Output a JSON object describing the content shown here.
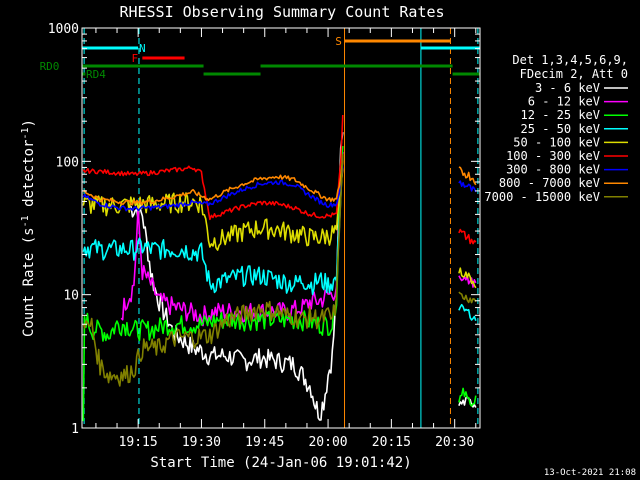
{
  "chart_data": {
    "type": "line",
    "title": "RHESSI Observing Summary Count Rates",
    "xlabel": "Start Time (24-Jan-06 19:01:42)",
    "ylabel_main": "Count Rate (s",
    "ylabel_sup1": "-1",
    "ylabel_mid": " detector",
    "ylabel_sup2": "-1",
    "ylabel_end": ")",
    "ylim": [
      1,
      1000
    ],
    "yscale": "log",
    "xlim_minutes": [
      1.7,
      96.0
    ],
    "x_ticks": [
      {
        "t": 15,
        "label": "19:15"
      },
      {
        "t": 30,
        "label": "19:30"
      },
      {
        "t": 45,
        "label": "19:45"
      },
      {
        "t": 60,
        "label": "20:00"
      },
      {
        "t": 75,
        "label": "20:15"
      },
      {
        "t": 90,
        "label": "20:30"
      }
    ],
    "y_ticks": [
      {
        "v": 1,
        "label": "1"
      },
      {
        "v": 10,
        "label": "10"
      },
      {
        "v": 100,
        "label": "100"
      },
      {
        "v": 1000,
        "label": "1000"
      }
    ],
    "legend_header": [
      "Det 1,3,4,5,6,9,",
      "FDecim 2, Att 0"
    ],
    "series": [
      {
        "name": "3 - 6 keV",
        "color": "#ffffff",
        "points": [
          [
            13,
            45
          ],
          [
            15,
            43
          ],
          [
            16,
            40
          ],
          [
            17,
            25
          ],
          [
            18,
            15
          ],
          [
            19,
            11
          ],
          [
            20,
            9
          ],
          [
            21,
            7.5
          ],
          [
            22,
            6.5
          ],
          [
            23,
            5.5
          ],
          [
            24,
            5
          ],
          [
            26,
            4.5
          ],
          [
            28,
            4
          ],
          [
            30,
            3.8
          ],
          [
            32,
            3.5
          ],
          [
            36,
            3.5
          ],
          [
            40,
            3.2
          ],
          [
            44,
            3.4
          ],
          [
            48,
            3.2
          ],
          [
            52,
            3
          ],
          [
            54,
            2.5
          ],
          [
            56,
            2
          ],
          [
            57,
            1.5
          ],
          [
            58,
            1.3
          ],
          [
            59,
            1.6
          ],
          [
            60,
            2.5
          ],
          [
            61,
            3.5
          ],
          [
            62,
            10
          ],
          [
            63,
            120
          ],
          [
            63.5,
            180
          ]
        ]
      },
      {
        "name": "6 - 12 keV",
        "color": "#ff00ff",
        "points": [
          [
            11,
            7
          ],
          [
            12,
            9
          ],
          [
            13,
            10
          ],
          [
            14,
            12
          ],
          [
            15,
            40
          ],
          [
            16,
            15
          ],
          [
            18,
            12
          ],
          [
            20,
            9
          ],
          [
            24,
            8
          ],
          [
            30,
            7
          ],
          [
            34,
            7.5
          ],
          [
            38,
            7.5
          ],
          [
            42,
            7.5
          ],
          [
            46,
            7.5
          ],
          [
            50,
            7.5
          ],
          [
            54,
            8
          ],
          [
            56,
            9
          ],
          [
            58,
            9
          ],
          [
            60,
            10
          ],
          [
            61,
            10
          ],
          [
            62,
            12
          ],
          [
            63,
            60
          ],
          [
            63.5,
            120
          ]
        ]
      },
      {
        "name": "12 - 25 keV",
        "color": "#00ff00",
        "points": [
          [
            2,
            1
          ],
          [
            2.3,
            7
          ],
          [
            4,
            5.5
          ],
          [
            6,
            5.5
          ],
          [
            8,
            5
          ],
          [
            10,
            6
          ],
          [
            12,
            6
          ],
          [
            14,
            5.5
          ],
          [
            16,
            5.5
          ],
          [
            18,
            5.5
          ],
          [
            22,
            6
          ],
          [
            26,
            6
          ],
          [
            30,
            6
          ],
          [
            34,
            6.5
          ],
          [
            38,
            6.5
          ],
          [
            42,
            6.5
          ],
          [
            46,
            6.5
          ],
          [
            50,
            6.5
          ],
          [
            54,
            6.5
          ],
          [
            58,
            6
          ],
          [
            60,
            6
          ],
          [
            61,
            6
          ],
          [
            62,
            10
          ],
          [
            63,
            80
          ],
          [
            63.5,
            150
          ]
        ]
      },
      {
        "name": "25 - 50 keV",
        "color": "#00ffff",
        "points": [
          [
            2,
            23
          ],
          [
            6,
            22
          ],
          [
            10,
            22
          ],
          [
            14,
            22
          ],
          [
            16,
            23
          ],
          [
            18,
            22
          ],
          [
            20,
            22
          ],
          [
            22,
            22
          ],
          [
            24,
            22
          ],
          [
            26,
            22
          ],
          [
            28,
            21
          ],
          [
            30,
            21
          ],
          [
            32,
            12
          ],
          [
            36,
            13
          ],
          [
            40,
            14
          ],
          [
            44,
            14
          ],
          [
            48,
            13
          ],
          [
            52,
            12
          ],
          [
            54,
            13
          ],
          [
            56,
            12
          ],
          [
            58,
            13
          ],
          [
            60,
            12
          ],
          [
            62,
            13
          ],
          [
            63,
            60
          ],
          [
            63.5,
            110
          ]
        ]
      },
      {
        "name": "50 - 100 keV",
        "color": "#dddd00",
        "points": [
          [
            2,
            48
          ],
          [
            6,
            47
          ],
          [
            10,
            47
          ],
          [
            14,
            48
          ],
          [
            18,
            48
          ],
          [
            22,
            49
          ],
          [
            26,
            50
          ],
          [
            28,
            50
          ],
          [
            30,
            49
          ],
          [
            32,
            25
          ],
          [
            36,
            27
          ],
          [
            40,
            30
          ],
          [
            44,
            32
          ],
          [
            48,
            31
          ],
          [
            52,
            29
          ],
          [
            54,
            28
          ],
          [
            56,
            27
          ],
          [
            58,
            27
          ],
          [
            60,
            28
          ],
          [
            62,
            30
          ],
          [
            63,
            55
          ],
          [
            63.5,
            80
          ]
        ]
      },
      {
        "name": "100 - 300 keV",
        "color": "#ff0000",
        "points": [
          [
            2,
            85
          ],
          [
            6,
            84
          ],
          [
            10,
            82
          ],
          [
            14,
            80
          ],
          [
            18,
            82
          ],
          [
            22,
            85
          ],
          [
            26,
            88
          ],
          [
            28,
            90
          ],
          [
            30,
            82
          ],
          [
            32,
            38
          ],
          [
            36,
            42
          ],
          [
            40,
            46
          ],
          [
            44,
            49
          ],
          [
            48,
            48
          ],
          [
            52,
            45
          ],
          [
            54,
            42
          ],
          [
            56,
            40
          ],
          [
            58,
            39
          ],
          [
            60,
            39
          ],
          [
            62,
            40
          ],
          [
            63,
            100
          ],
          [
            63.5,
            220
          ]
        ]
      },
      {
        "name": "300 - 800 keV",
        "color": "#0000ff",
        "points": [
          [
            2,
            55
          ],
          [
            6,
            48
          ],
          [
            10,
            45
          ],
          [
            14,
            44
          ],
          [
            18,
            45
          ],
          [
            22,
            46
          ],
          [
            26,
            48
          ],
          [
            28,
            49
          ],
          [
            30,
            48
          ],
          [
            32,
            48
          ],
          [
            36,
            55
          ],
          [
            40,
            62
          ],
          [
            44,
            68
          ],
          [
            48,
            70
          ],
          [
            52,
            67
          ],
          [
            54,
            60
          ],
          [
            56,
            55
          ],
          [
            58,
            50
          ],
          [
            60,
            47
          ],
          [
            62,
            48
          ],
          [
            63,
            65
          ],
          [
            63.5,
            90
          ]
        ]
      },
      {
        "name": "800 - 7000 keV",
        "color": "#ff8800",
        "points": [
          [
            2,
            60
          ],
          [
            6,
            52
          ],
          [
            10,
            50
          ],
          [
            14,
            49
          ],
          [
            18,
            50
          ],
          [
            22,
            53
          ],
          [
            26,
            57
          ],
          [
            28,
            59
          ],
          [
            30,
            55
          ],
          [
            32,
            52
          ],
          [
            36,
            60
          ],
          [
            40,
            68
          ],
          [
            44,
            74
          ],
          [
            48,
            77
          ],
          [
            52,
            73
          ],
          [
            54,
            67
          ],
          [
            56,
            61
          ],
          [
            58,
            56
          ],
          [
            60,
            52
          ],
          [
            62,
            52
          ],
          [
            63,
            75
          ],
          [
            63.5,
            100
          ]
        ]
      },
      {
        "name": "7000 - 15000 keV",
        "color": "#808000",
        "points": [
          [
            2,
            7
          ],
          [
            3,
            5.5
          ],
          [
            4,
            6
          ],
          [
            5,
            4
          ],
          [
            6,
            3
          ],
          [
            8,
            2.5
          ],
          [
            10,
            2.5
          ],
          [
            12,
            2.5
          ],
          [
            14,
            2.8
          ],
          [
            16,
            4
          ],
          [
            18,
            4
          ],
          [
            20,
            4
          ],
          [
            22,
            4.5
          ],
          [
            24,
            4.8
          ],
          [
            28,
            4.8
          ],
          [
            32,
            5
          ],
          [
            36,
            6.5
          ],
          [
            40,
            7.2
          ],
          [
            44,
            8
          ],
          [
            48,
            7.5
          ],
          [
            50,
            7
          ],
          [
            52,
            7
          ],
          [
            54,
            6.5
          ],
          [
            56,
            7
          ],
          [
            58,
            6.5
          ],
          [
            60,
            7
          ],
          [
            61,
            6.5
          ],
          [
            62,
            9
          ],
          [
            63,
            60
          ],
          [
            63.5,
            100
          ]
        ]
      }
    ],
    "series_after_gap": [
      {
        "color": "#ffffff",
        "points": [
          [
            91,
            1.5
          ],
          [
            93,
            1.6
          ],
          [
            95,
            1.5
          ]
        ]
      },
      {
        "color": "#ff00ff",
        "points": [
          [
            91,
            14
          ],
          [
            93,
            13
          ],
          [
            95,
            12
          ]
        ]
      },
      {
        "color": "#00ff00",
        "points": [
          [
            91,
            1.5
          ],
          [
            92,
            1.9
          ],
          [
            94,
            1.5
          ],
          [
            95,
            1.7
          ]
        ]
      },
      {
        "color": "#00ffff",
        "points": [
          [
            91,
            8
          ],
          [
            93,
            7.5
          ],
          [
            95,
            6.5
          ]
        ]
      },
      {
        "color": "#dddd00",
        "points": [
          [
            91,
            15
          ],
          [
            93,
            14
          ],
          [
            95,
            12
          ]
        ]
      },
      {
        "color": "#ff0000",
        "points": [
          [
            91,
            30
          ],
          [
            93,
            27
          ],
          [
            95,
            24
          ]
        ]
      },
      {
        "color": "#0000ff",
        "points": [
          [
            91,
            70
          ],
          [
            93,
            65
          ],
          [
            95,
            58
          ]
        ]
      },
      {
        "color": "#ff8800",
        "points": [
          [
            91,
            85
          ],
          [
            93,
            80
          ],
          [
            95,
            72
          ]
        ]
      },
      {
        "color": "#808000",
        "points": [
          [
            91,
            10
          ],
          [
            93,
            9.5
          ],
          [
            95,
            9
          ]
        ]
      }
    ],
    "flags": [
      {
        "label": "N",
        "color": "#00ffff",
        "segments": [
          [
            1.7,
            15
          ]
        ],
        "label_t": 16,
        "level_px": 48
      },
      {
        "label": "F",
        "color": "#ff0000",
        "segments": [
          [
            16,
            26
          ]
        ],
        "label_t": 14.2,
        "level_px": 58
      },
      {
        "label": "S",
        "color": "#ff8800",
        "segments": [
          [
            64,
            89
          ]
        ],
        "label_t": 62.5,
        "level_px": 41
      },
      {
        "label": "",
        "color": "#00ffff",
        "segments": [
          [
            82,
            96
          ]
        ],
        "label_t": 82,
        "level_px": 48
      },
      {
        "label": "RD0",
        "color": "#008800",
        "segments": [
          [
            1.7,
            30.5
          ],
          [
            44,
            89.5
          ]
        ],
        "label_t": -6,
        "level_px": 66
      },
      {
        "label": "RD4",
        "color": "#008800",
        "segments": [
          [
            1.7,
            2.5
          ],
          [
            30.5,
            44
          ],
          [
            89.5,
            96
          ]
        ],
        "label_t": 5,
        "level_px": 74
      }
    ],
    "vlines": [
      {
        "t": 2.2,
        "color": "#00ffff",
        "style": "dashed"
      },
      {
        "t": 15.2,
        "color": "#00ffff",
        "style": "dashed"
      },
      {
        "t": 63.9,
        "color": "#ff8800",
        "style": "solid"
      },
      {
        "t": 82.0,
        "color": "#00ffff",
        "style": "solid"
      },
      {
        "t": 89.0,
        "color": "#ff8800",
        "style": "dashed"
      },
      {
        "t": 95.5,
        "color": "#00ffff",
        "style": "dashed"
      }
    ],
    "footer_date": "13-Oct-2021 21:08"
  }
}
